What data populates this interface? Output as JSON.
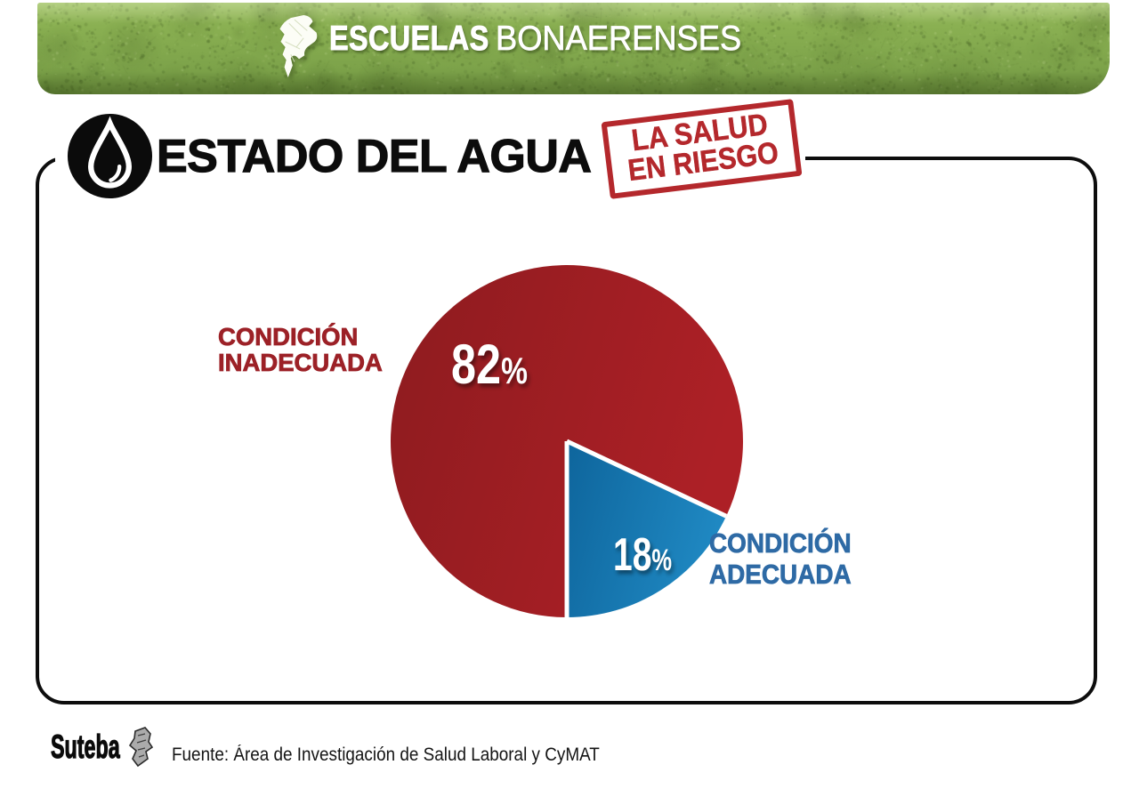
{
  "header": {
    "brand_bold": "ESCUELAS",
    "brand_regular": "BONAERENSES"
  },
  "title": {
    "text": "ESTADO DEL AGUA"
  },
  "stamp": {
    "line1": "LA SALUD",
    "line2": "EN RIESGO"
  },
  "chart_data": {
    "type": "pie",
    "title": "ESTADO DEL AGUA",
    "start_angle": 180,
    "direction": "clockwise",
    "percent_symbol": "%",
    "slices": [
      {
        "label": "CONDICIÓN INADECUADA",
        "label_line1": "CONDICIÓN",
        "label_line2": "INADECUADA",
        "value": 82,
        "color": "#ad2026",
        "color_dark": "#8d1b1f",
        "text_color": "#9c2127"
      },
      {
        "label": "CONDICIÓN ADECUADA",
        "label_line1": "CONDICIÓN",
        "label_line2": "ADECUADA",
        "value": 18,
        "color": "#1f88c2",
        "color_dark": "#0e659c",
        "text_color": "#2e6aa5",
        "separator_color": "#ffffff",
        "separator_width": 5
      }
    ],
    "legend_position": "inline-callouts"
  },
  "footer": {
    "logo_text": "Suteba",
    "source": "Fuente: Área de Investigación de Salud Laboral y CyMAT"
  }
}
